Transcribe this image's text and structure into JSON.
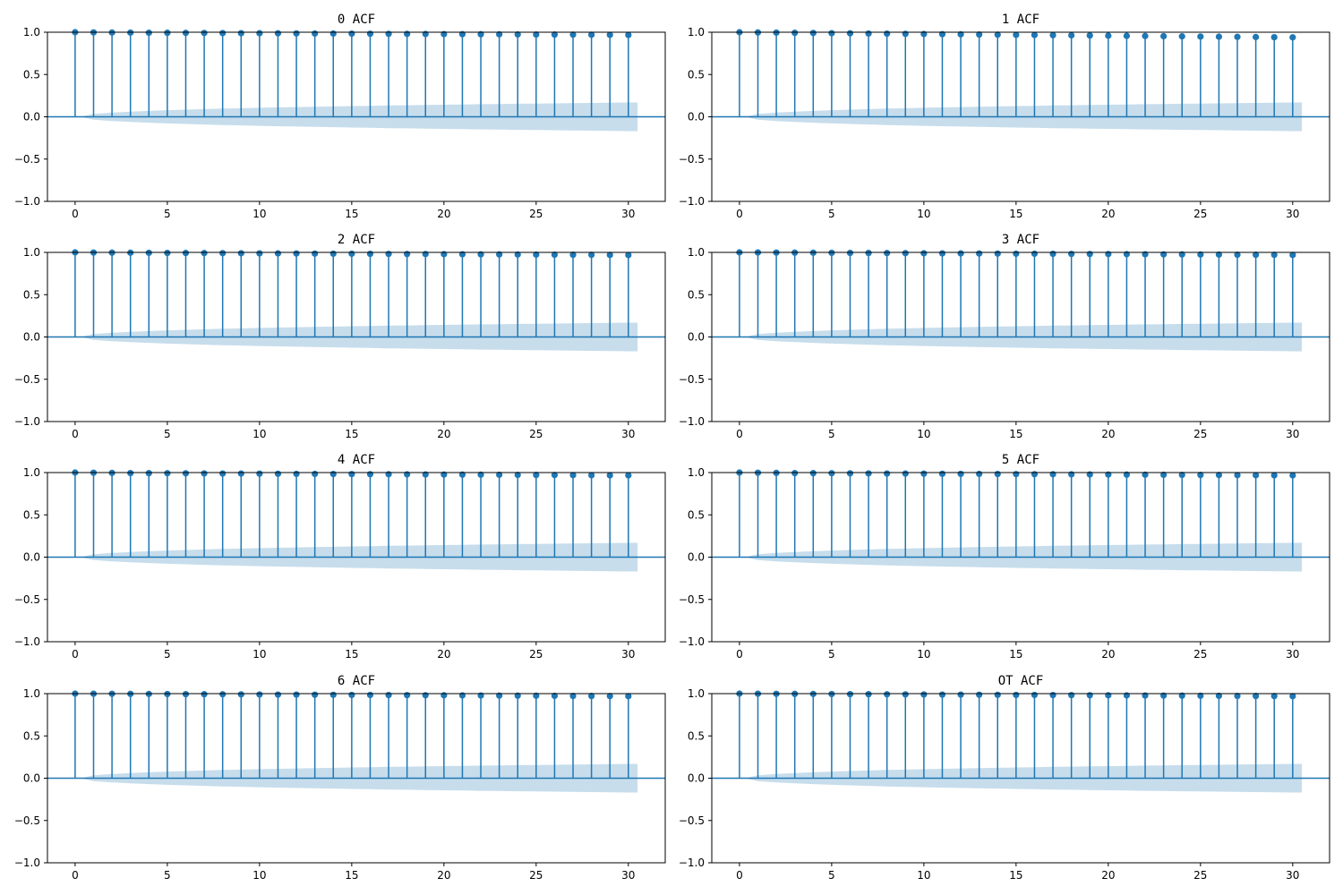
{
  "chart_data": [
    {
      "type": "stem",
      "title": "0 ACF",
      "xlim": [
        -1.5,
        32
      ],
      "ylim": [
        -1,
        1
      ],
      "x": [
        0,
        1,
        2,
        3,
        4,
        5,
        6,
        7,
        8,
        9,
        10,
        11,
        12,
        13,
        14,
        15,
        16,
        17,
        18,
        19,
        20,
        21,
        22,
        23,
        24,
        25,
        26,
        27,
        28,
        29,
        30
      ],
      "values": [
        1.0,
        0.998,
        0.996,
        0.995,
        0.994,
        0.993,
        0.992,
        0.991,
        0.99,
        0.989,
        0.988,
        0.987,
        0.986,
        0.985,
        0.984,
        0.983,
        0.982,
        0.981,
        0.98,
        0.979,
        0.978,
        0.977,
        0.976,
        0.975,
        0.974,
        0.973,
        0.972,
        0.971,
        0.97,
        0.969,
        0.968
      ],
      "conf_band": [
        0.0,
        0.035,
        0.05,
        0.06,
        0.07,
        0.078,
        0.085,
        0.091,
        0.097,
        0.102,
        0.107,
        0.111,
        0.115,
        0.119,
        0.123,
        0.127,
        0.13,
        0.134,
        0.137,
        0.14,
        0.143,
        0.146,
        0.149,
        0.151,
        0.154,
        0.157,
        0.159,
        0.162,
        0.164,
        0.166,
        0.169
      ]
    },
    {
      "type": "stem",
      "title": "1 ACF",
      "xlim": [
        -1.5,
        32
      ],
      "ylim": [
        -1,
        1
      ],
      "x": [
        0,
        1,
        2,
        3,
        4,
        5,
        6,
        7,
        8,
        9,
        10,
        11,
        12,
        13,
        14,
        15,
        16,
        17,
        18,
        19,
        20,
        21,
        22,
        23,
        24,
        25,
        26,
        27,
        28,
        29,
        30
      ],
      "values": [
        1.0,
        0.997,
        0.995,
        0.993,
        0.991,
        0.989,
        0.987,
        0.985,
        0.983,
        0.981,
        0.979,
        0.977,
        0.975,
        0.973,
        0.971,
        0.969,
        0.967,
        0.965,
        0.963,
        0.961,
        0.959,
        0.957,
        0.955,
        0.953,
        0.951,
        0.949,
        0.947,
        0.945,
        0.943,
        0.941,
        0.939
      ],
      "conf_band": [
        0.0,
        0.035,
        0.05,
        0.06,
        0.07,
        0.078,
        0.085,
        0.091,
        0.097,
        0.102,
        0.107,
        0.111,
        0.115,
        0.119,
        0.123,
        0.127,
        0.13,
        0.134,
        0.137,
        0.14,
        0.143,
        0.146,
        0.149,
        0.151,
        0.154,
        0.157,
        0.159,
        0.162,
        0.164,
        0.166,
        0.169
      ]
    },
    {
      "type": "stem",
      "title": "2 ACF",
      "xlim": [
        -1.5,
        32
      ],
      "ylim": [
        -1,
        1
      ],
      "x": [
        0,
        1,
        2,
        3,
        4,
        5,
        6,
        7,
        8,
        9,
        10,
        11,
        12,
        13,
        14,
        15,
        16,
        17,
        18,
        19,
        20,
        21,
        22,
        23,
        24,
        25,
        26,
        27,
        28,
        29,
        30
      ],
      "values": [
        1.0,
        0.998,
        0.997,
        0.996,
        0.995,
        0.994,
        0.993,
        0.992,
        0.991,
        0.99,
        0.989,
        0.988,
        0.987,
        0.986,
        0.985,
        0.984,
        0.983,
        0.982,
        0.981,
        0.98,
        0.979,
        0.978,
        0.977,
        0.976,
        0.975,
        0.974,
        0.973,
        0.972,
        0.971,
        0.97,
        0.969
      ],
      "conf_band": [
        0.0,
        0.035,
        0.05,
        0.06,
        0.07,
        0.078,
        0.085,
        0.091,
        0.097,
        0.102,
        0.107,
        0.111,
        0.115,
        0.119,
        0.123,
        0.127,
        0.13,
        0.134,
        0.137,
        0.14,
        0.143,
        0.146,
        0.149,
        0.151,
        0.154,
        0.157,
        0.159,
        0.162,
        0.164,
        0.166,
        0.169
      ]
    },
    {
      "type": "stem",
      "title": "3 ACF",
      "xlim": [
        -1.5,
        32
      ],
      "ylim": [
        -1,
        1
      ],
      "x": [
        0,
        1,
        2,
        3,
        4,
        5,
        6,
        7,
        8,
        9,
        10,
        11,
        12,
        13,
        14,
        15,
        16,
        17,
        18,
        19,
        20,
        21,
        22,
        23,
        24,
        25,
        26,
        27,
        28,
        29,
        30
      ],
      "values": [
        1.0,
        0.999,
        0.998,
        0.997,
        0.996,
        0.995,
        0.994,
        0.993,
        0.992,
        0.991,
        0.99,
        0.989,
        0.988,
        0.987,
        0.986,
        0.985,
        0.984,
        0.983,
        0.982,
        0.981,
        0.98,
        0.979,
        0.978,
        0.977,
        0.976,
        0.975,
        0.974,
        0.973,
        0.972,
        0.971,
        0.97
      ],
      "conf_band": [
        0.0,
        0.035,
        0.05,
        0.06,
        0.07,
        0.078,
        0.085,
        0.091,
        0.097,
        0.102,
        0.107,
        0.111,
        0.115,
        0.119,
        0.123,
        0.127,
        0.13,
        0.134,
        0.137,
        0.14,
        0.143,
        0.146,
        0.149,
        0.151,
        0.154,
        0.157,
        0.159,
        0.162,
        0.164,
        0.166,
        0.169
      ]
    },
    {
      "type": "stem",
      "title": "4 ACF",
      "xlim": [
        -1.5,
        32
      ],
      "ylim": [
        -1,
        1
      ],
      "x": [
        0,
        1,
        2,
        3,
        4,
        5,
        6,
        7,
        8,
        9,
        10,
        11,
        12,
        13,
        14,
        15,
        16,
        17,
        18,
        19,
        20,
        21,
        22,
        23,
        24,
        25,
        26,
        27,
        28,
        29,
        30
      ],
      "values": [
        1.0,
        0.998,
        0.996,
        0.994,
        0.993,
        0.992,
        0.991,
        0.99,
        0.989,
        0.988,
        0.987,
        0.986,
        0.985,
        0.984,
        0.983,
        0.982,
        0.981,
        0.98,
        0.979,
        0.978,
        0.977,
        0.976,
        0.975,
        0.974,
        0.973,
        0.972,
        0.971,
        0.97,
        0.969,
        0.968,
        0.967
      ],
      "conf_band": [
        0.0,
        0.035,
        0.05,
        0.06,
        0.07,
        0.078,
        0.085,
        0.091,
        0.097,
        0.102,
        0.107,
        0.111,
        0.115,
        0.119,
        0.123,
        0.127,
        0.13,
        0.134,
        0.137,
        0.14,
        0.143,
        0.146,
        0.149,
        0.151,
        0.154,
        0.157,
        0.159,
        0.162,
        0.164,
        0.166,
        0.169
      ]
    },
    {
      "type": "stem",
      "title": "5 ACF",
      "xlim": [
        -1.5,
        32
      ],
      "ylim": [
        -1,
        1
      ],
      "x": [
        0,
        1,
        2,
        3,
        4,
        5,
        6,
        7,
        8,
        9,
        10,
        11,
        12,
        13,
        14,
        15,
        16,
        17,
        18,
        19,
        20,
        21,
        22,
        23,
        24,
        25,
        26,
        27,
        28,
        29,
        30
      ],
      "values": [
        1.0,
        0.998,
        0.996,
        0.994,
        0.993,
        0.992,
        0.991,
        0.99,
        0.989,
        0.988,
        0.987,
        0.986,
        0.985,
        0.984,
        0.983,
        0.982,
        0.981,
        0.98,
        0.979,
        0.978,
        0.977,
        0.976,
        0.975,
        0.974,
        0.973,
        0.972,
        0.971,
        0.97,
        0.969,
        0.968,
        0.967
      ],
      "conf_band": [
        0.0,
        0.035,
        0.05,
        0.06,
        0.07,
        0.078,
        0.085,
        0.091,
        0.097,
        0.102,
        0.107,
        0.111,
        0.115,
        0.119,
        0.123,
        0.127,
        0.13,
        0.134,
        0.137,
        0.14,
        0.143,
        0.146,
        0.149,
        0.151,
        0.154,
        0.157,
        0.159,
        0.162,
        0.164,
        0.166,
        0.169
      ]
    },
    {
      "type": "stem",
      "title": "6 ACF",
      "xlim": [
        -1.5,
        32
      ],
      "ylim": [
        -1,
        1
      ],
      "x": [
        0,
        1,
        2,
        3,
        4,
        5,
        6,
        7,
        8,
        9,
        10,
        11,
        12,
        13,
        14,
        15,
        16,
        17,
        18,
        19,
        20,
        21,
        22,
        23,
        24,
        25,
        26,
        27,
        28,
        29,
        30
      ],
      "values": [
        1.0,
        0.999,
        0.998,
        0.997,
        0.996,
        0.995,
        0.994,
        0.993,
        0.992,
        0.991,
        0.99,
        0.989,
        0.988,
        0.987,
        0.986,
        0.985,
        0.984,
        0.983,
        0.982,
        0.981,
        0.98,
        0.979,
        0.978,
        0.977,
        0.976,
        0.975,
        0.974,
        0.973,
        0.972,
        0.971,
        0.97
      ],
      "conf_band": [
        0.0,
        0.035,
        0.05,
        0.06,
        0.07,
        0.078,
        0.085,
        0.091,
        0.097,
        0.102,
        0.107,
        0.111,
        0.115,
        0.119,
        0.123,
        0.127,
        0.13,
        0.134,
        0.137,
        0.14,
        0.143,
        0.146,
        0.149,
        0.151,
        0.154,
        0.157,
        0.159,
        0.162,
        0.164,
        0.166,
        0.169
      ]
    },
    {
      "type": "stem",
      "title": "OT ACF",
      "xlim": [
        -1.5,
        32
      ],
      "ylim": [
        -1,
        1
      ],
      "x": [
        0,
        1,
        2,
        3,
        4,
        5,
        6,
        7,
        8,
        9,
        10,
        11,
        12,
        13,
        14,
        15,
        16,
        17,
        18,
        19,
        20,
        21,
        22,
        23,
        24,
        25,
        26,
        27,
        28,
        29,
        30
      ],
      "values": [
        1.0,
        0.999,
        0.998,
        0.997,
        0.996,
        0.995,
        0.994,
        0.993,
        0.992,
        0.991,
        0.99,
        0.989,
        0.988,
        0.987,
        0.986,
        0.985,
        0.984,
        0.983,
        0.982,
        0.981,
        0.98,
        0.979,
        0.978,
        0.977,
        0.976,
        0.975,
        0.974,
        0.973,
        0.972,
        0.971,
        0.97
      ],
      "conf_band": [
        0.0,
        0.035,
        0.05,
        0.06,
        0.07,
        0.078,
        0.085,
        0.091,
        0.097,
        0.102,
        0.107,
        0.111,
        0.115,
        0.119,
        0.123,
        0.127,
        0.13,
        0.134,
        0.137,
        0.14,
        0.143,
        0.146,
        0.149,
        0.151,
        0.154,
        0.157,
        0.159,
        0.162,
        0.164,
        0.166,
        0.169
      ]
    }
  ],
  "axes": {
    "x_ticks": [
      0,
      5,
      10,
      15,
      20,
      25,
      30
    ],
    "y_ticks": [
      -1.0,
      -0.5,
      0.0,
      0.5,
      1.0
    ],
    "y_tick_labels": [
      "−1.0",
      "−0.5",
      "0.0",
      "0.5",
      "1.0"
    ]
  },
  "colors": {
    "stem": "#1f77b4",
    "band": "#1f77b4",
    "band_opacity": "0.25",
    "axis": "#000000"
  }
}
